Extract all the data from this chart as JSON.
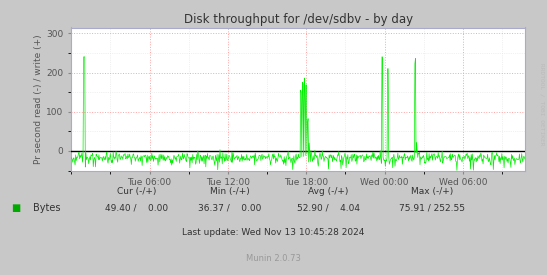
{
  "title": "Disk throughput for /dev/sdbv - by day",
  "ylabel": "Pr second read (-) / write (+)",
  "xlabel_ticks": [
    "Tue 06:00",
    "Tue 12:00",
    "Tue 18:00",
    "Wed 00:00",
    "Wed 06:00"
  ],
  "ylim": [
    -50,
    315
  ],
  "yticks": [
    0,
    100,
    200,
    300
  ],
  "bg_color": "#c8c8c8",
  "plot_bg_color": "#ffffff",
  "grid_color_major": "#ff9999",
  "grid_color_minor": "#dddddd",
  "line_color": "#00ee00",
  "zero_line_color": "#000000",
  "right_label": "RRDTOOL / TOBI OETIKER",
  "legend_label": "Bytes",
  "legend_color": "#00aa00",
  "cur_neg": "49.40",
  "cur_pos": "0.00",
  "min_neg": "36.37",
  "min_pos": "0.00",
  "avg_neg": "52.90",
  "avg_pos": "4.04",
  "max_neg": "75.91",
  "max_pos": "252.55",
  "footer_update": "Last update: Wed Nov 13 10:45:28 2024",
  "footer_munin": "Munin 2.0.73",
  "n_points": 800,
  "total_hours": 34.75,
  "tick_hours": [
    6,
    12,
    18,
    24,
    30
  ],
  "spine_color": "#aaaacc"
}
